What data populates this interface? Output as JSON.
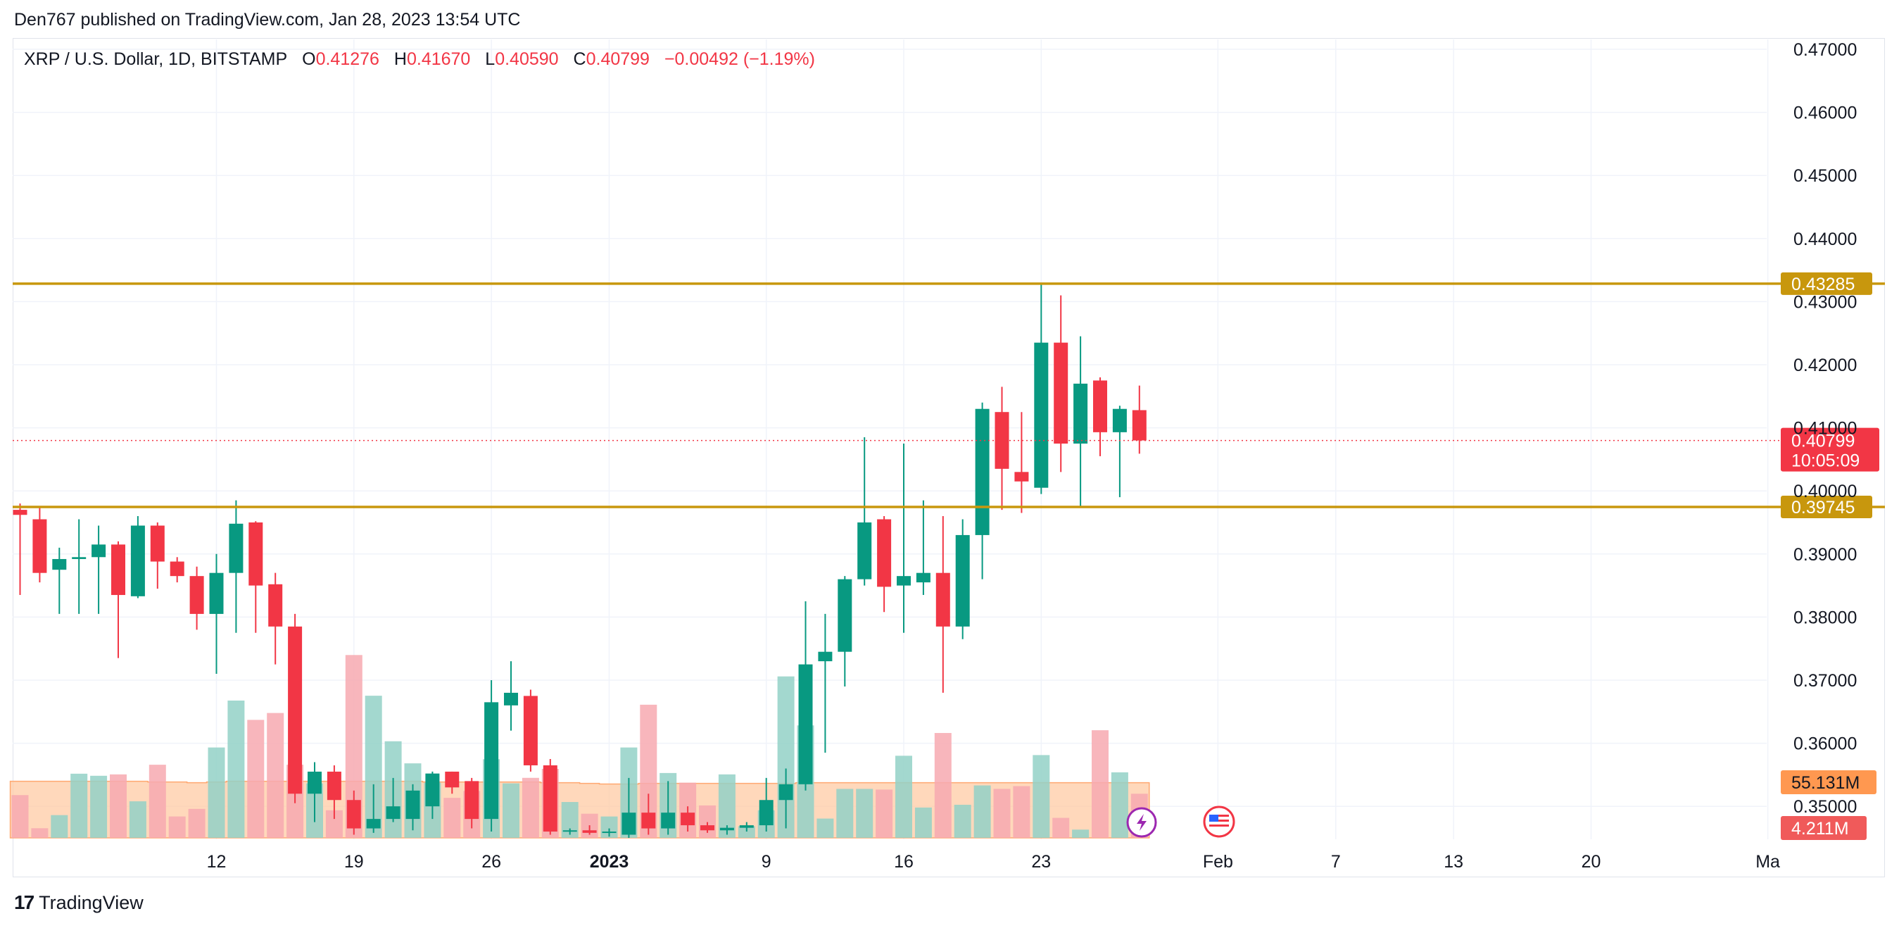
{
  "publisher_line": "Den767 published on TradingView.com, Jan 28, 2023 13:54 UTC",
  "footer": {
    "brand": "TradingView"
  },
  "legend": {
    "symbol": "XRP / U.S. Dollar, 1D, BITSTAMP",
    "o_label": "O",
    "o_value": "0.41276",
    "h_label": "H",
    "h_value": "0.41670",
    "l_label": "L",
    "l_value": "0.40590",
    "c_label": "C",
    "c_value": "0.40799",
    "change": "−0.00492 (−1.19%)"
  },
  "colors": {
    "up": "#089981",
    "down": "#f23645",
    "level": "#c8970d",
    "volume_up": "#93d1c7",
    "volume_down": "#f7a9b0",
    "volume_ma": "#ffcba4",
    "volume_tag": "#ff9850",
    "grid": "#f0f3fa"
  },
  "chart_data": {
    "type": "candlestick",
    "price_axis": {
      "ticks": [
        "0.47000",
        "0.46000",
        "0.45000",
        "0.44000",
        "0.43000",
        "0.42000",
        "0.41000",
        "0.40000",
        "0.39000",
        "0.38000",
        "0.37000",
        "0.36000",
        "0.35000"
      ]
    },
    "time_axis": {
      "ticks": [
        {
          "label": "12",
          "index": 10
        },
        {
          "label": "19",
          "index": 17
        },
        {
          "label": "26",
          "index": 24
        },
        {
          "label": "2023",
          "index": 30,
          "bold": true
        },
        {
          "label": "9",
          "index": 38
        },
        {
          "label": "16",
          "index": 45
        },
        {
          "label": "23",
          "index": 52
        },
        {
          "label": "Feb",
          "index": 61
        },
        {
          "label": "7",
          "index": 67
        },
        {
          "label": "13",
          "index": 73
        },
        {
          "label": "20",
          "index": 80
        },
        {
          "label": "Ma",
          "index": 89
        }
      ]
    },
    "candles": [
      {
        "o": 0.397,
        "h": 0.398,
        "l": 0.3835,
        "c": 0.3962
      },
      {
        "o": 0.3955,
        "h": 0.3975,
        "l": 0.3855,
        "c": 0.387
      },
      {
        "o": 0.3875,
        "h": 0.391,
        "l": 0.3805,
        "c": 0.3892
      },
      {
        "o": 0.3892,
        "h": 0.3955,
        "l": 0.3805,
        "c": 0.3895
      },
      {
        "o": 0.3895,
        "h": 0.3945,
        "l": 0.3805,
        "c": 0.3915
      },
      {
        "o": 0.3915,
        "h": 0.392,
        "l": 0.3735,
        "c": 0.3835
      },
      {
        "o": 0.3833,
        "h": 0.396,
        "l": 0.383,
        "c": 0.3945
      },
      {
        "o": 0.3945,
        "h": 0.395,
        "l": 0.3845,
        "c": 0.3888
      },
      {
        "o": 0.3888,
        "h": 0.3895,
        "l": 0.3855,
        "c": 0.3865
      },
      {
        "o": 0.3865,
        "h": 0.388,
        "l": 0.378,
        "c": 0.3805
      },
      {
        "o": 0.3805,
        "h": 0.39,
        "l": 0.371,
        "c": 0.387
      },
      {
        "o": 0.387,
        "h": 0.3985,
        "l": 0.3775,
        "c": 0.3948
      },
      {
        "o": 0.395,
        "h": 0.3952,
        "l": 0.3775,
        "c": 0.385
      },
      {
        "o": 0.3852,
        "h": 0.387,
        "l": 0.3725,
        "c": 0.3785
      },
      {
        "o": 0.3785,
        "h": 0.3805,
        "l": 0.3505,
        "c": 0.352
      },
      {
        "o": 0.352,
        "h": 0.357,
        "l": 0.3475,
        "c": 0.3555
      },
      {
        "o": 0.3555,
        "h": 0.3565,
        "l": 0.348,
        "c": 0.351
      },
      {
        "o": 0.351,
        "h": 0.3525,
        "l": 0.3455,
        "c": 0.3465
      },
      {
        "o": 0.3465,
        "h": 0.3535,
        "l": 0.3458,
        "c": 0.348
      },
      {
        "o": 0.348,
        "h": 0.3545,
        "l": 0.3475,
        "c": 0.35
      },
      {
        "o": 0.348,
        "h": 0.3535,
        "l": 0.3462,
        "c": 0.3525
      },
      {
        "o": 0.35,
        "h": 0.3555,
        "l": 0.348,
        "c": 0.3552
      },
      {
        "o": 0.3555,
        "h": 0.3555,
        "l": 0.352,
        "c": 0.353
      },
      {
        "o": 0.354,
        "h": 0.3545,
        "l": 0.3465,
        "c": 0.348
      },
      {
        "o": 0.348,
        "h": 0.37,
        "l": 0.346,
        "c": 0.3665
      },
      {
        "o": 0.366,
        "h": 0.373,
        "l": 0.362,
        "c": 0.368
      },
      {
        "o": 0.3675,
        "h": 0.3685,
        "l": 0.3555,
        "c": 0.3565
      },
      {
        "o": 0.3565,
        "h": 0.3575,
        "l": 0.3455,
        "c": 0.346
      },
      {
        "o": 0.346,
        "h": 0.3465,
        "l": 0.3455,
        "c": 0.3462
      },
      {
        "o": 0.3462,
        "h": 0.347,
        "l": 0.3455,
        "c": 0.3458
      },
      {
        "o": 0.3458,
        "h": 0.3465,
        "l": 0.3452,
        "c": 0.346
      },
      {
        "o": 0.3455,
        "h": 0.3545,
        "l": 0.345,
        "c": 0.349
      },
      {
        "o": 0.349,
        "h": 0.352,
        "l": 0.3455,
        "c": 0.3465
      },
      {
        "o": 0.3465,
        "h": 0.354,
        "l": 0.3455,
        "c": 0.349
      },
      {
        "o": 0.349,
        "h": 0.35,
        "l": 0.346,
        "c": 0.347
      },
      {
        "o": 0.347,
        "h": 0.3475,
        "l": 0.3458,
        "c": 0.3462
      },
      {
        "o": 0.3462,
        "h": 0.347,
        "l": 0.3455,
        "c": 0.3466
      },
      {
        "o": 0.3466,
        "h": 0.3475,
        "l": 0.346,
        "c": 0.347
      },
      {
        "o": 0.347,
        "h": 0.3545,
        "l": 0.346,
        "c": 0.351
      },
      {
        "o": 0.351,
        "h": 0.356,
        "l": 0.3465,
        "c": 0.3535
      },
      {
        "o": 0.3535,
        "h": 0.3825,
        "l": 0.3525,
        "c": 0.3725
      },
      {
        "o": 0.373,
        "h": 0.3805,
        "l": 0.3585,
        "c": 0.3745
      },
      {
        "o": 0.3745,
        "h": 0.3865,
        "l": 0.369,
        "c": 0.386
      },
      {
        "o": 0.386,
        "h": 0.4085,
        "l": 0.385,
        "c": 0.395
      },
      {
        "o": 0.3955,
        "h": 0.396,
        "l": 0.3808,
        "c": 0.3848
      },
      {
        "o": 0.385,
        "h": 0.4075,
        "l": 0.3775,
        "c": 0.3865
      },
      {
        "o": 0.3855,
        "h": 0.3985,
        "l": 0.3835,
        "c": 0.387
      },
      {
        "o": 0.387,
        "h": 0.396,
        "l": 0.368,
        "c": 0.3785
      },
      {
        "o": 0.3785,
        "h": 0.3955,
        "l": 0.3765,
        "c": 0.393
      },
      {
        "o": 0.393,
        "h": 0.414,
        "l": 0.386,
        "c": 0.413
      },
      {
        "o": 0.4125,
        "h": 0.4165,
        "l": 0.397,
        "c": 0.4035
      },
      {
        "o": 0.403,
        "h": 0.4125,
        "l": 0.3965,
        "c": 0.4015
      },
      {
        "o": 0.4005,
        "h": 0.4328,
        "l": 0.3995,
        "c": 0.4235
      },
      {
        "o": 0.4235,
        "h": 0.431,
        "l": 0.403,
        "c": 0.4075
      },
      {
        "o": 0.4075,
        "h": 0.4245,
        "l": 0.3975,
        "c": 0.417
      },
      {
        "o": 0.4175,
        "h": 0.418,
        "l": 0.4055,
        "c": 0.4093
      },
      {
        "o": 0.4093,
        "h": 0.4135,
        "l": 0.399,
        "c": 0.413
      },
      {
        "o": 0.4128,
        "h": 0.4167,
        "l": 0.4059,
        "c": 0.408
      }
    ],
    "volumes": [
      0.62,
      0.14,
      0.33,
      0.93,
      0.9,
      0.92,
      0.53,
      1.06,
      0.31,
      0.42,
      1.31,
      1.99,
      1.71,
      1.81,
      1.06,
      0.79,
      0.4,
      2.65,
      2.06,
      1.4,
      1.08,
      0.8,
      0.58,
      0.68,
      1.14,
      0.79,
      0.87,
      1.0,
      0.52,
      0.35,
      0.31,
      1.31,
      1.93,
      0.94,
      0.8,
      0.47,
      0.92,
      0.17,
      0.4,
      2.34,
      1.63,
      0.28,
      0.71,
      0.71,
      0.7,
      1.19,
      0.44,
      1.52,
      0.48,
      0.76,
      0.71,
      0.75,
      1.2,
      0.29,
      0.12,
      1.56,
      0.95,
      0.64
    ],
    "volume_ma": [
      0.82,
      0.82,
      0.82,
      0.82,
      0.82,
      0.82,
      0.82,
      0.81,
      0.81,
      0.8,
      0.81,
      0.82,
      0.82,
      0.82,
      0.82,
      0.82,
      0.82,
      0.82,
      0.82,
      0.82,
      0.82,
      0.81,
      0.81,
      0.81,
      0.81,
      0.81,
      0.81,
      0.8,
      0.8,
      0.79,
      0.78,
      0.78,
      0.79,
      0.79,
      0.79,
      0.79,
      0.79,
      0.79,
      0.79,
      0.79,
      0.8,
      0.8,
      0.8,
      0.8,
      0.8,
      0.8,
      0.8,
      0.8,
      0.8,
      0.8,
      0.8,
      0.8,
      0.8,
      0.8,
      0.8,
      0.8,
      0.8,
      0.8
    ],
    "horizontal_levels": [
      {
        "value": 0.43285,
        "label": "0.43285"
      },
      {
        "value": 0.39745,
        "label": "0.39745"
      }
    ],
    "last_price": {
      "value": 0.40799,
      "label": "0.40799",
      "countdown": "10:05:09"
    },
    "volume_labels": {
      "ma": "55.131M",
      "last": "4.211M"
    }
  }
}
